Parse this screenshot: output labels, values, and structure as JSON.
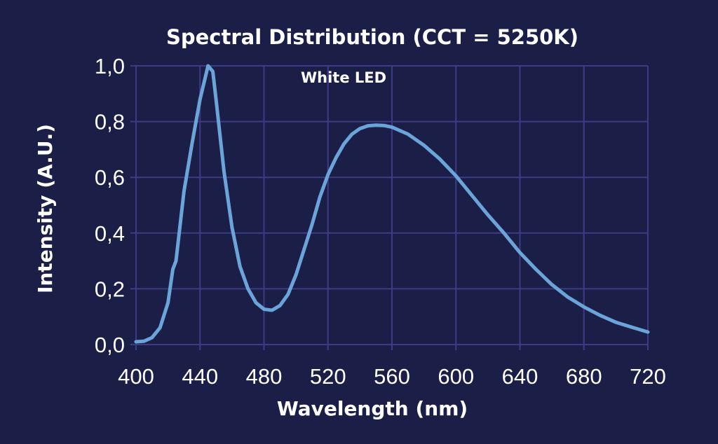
{
  "chart_data": {
    "type": "line",
    "title": "Spectral Distribution (CCT = 5250K)",
    "annotation": "White LED",
    "xlabel": "Wavelength (nm)",
    "ylabel": "Intensity (A.U.)",
    "xlim": [
      400,
      720
    ],
    "ylim": [
      0,
      1.0
    ],
    "xticks": [
      400,
      440,
      480,
      520,
      560,
      600,
      640,
      680,
      720
    ],
    "xtick_labels": [
      "400",
      "440",
      "480",
      "520",
      "560",
      "600",
      "640",
      "680",
      "720"
    ],
    "yticks": [
      0,
      0.2,
      0.4,
      0.6,
      0.8,
      1.0
    ],
    "ytick_labels": [
      "0,0",
      "0,2",
      "0,4",
      "0,6",
      "0,8",
      "1,0"
    ],
    "grid": true,
    "legend": "none",
    "series": [
      {
        "name": "White LED",
        "color": "#6aa4d8",
        "x": [
          400,
          405,
          410,
          415,
          420,
          423,
          425,
          430,
          435,
          440,
          445,
          448,
          450,
          455,
          460,
          465,
          470,
          475,
          480,
          485,
          490,
          495,
          500,
          505,
          510,
          515,
          520,
          525,
          530,
          535,
          540,
          545,
          550,
          555,
          560,
          570,
          580,
          590,
          600,
          610,
          620,
          630,
          640,
          650,
          660,
          670,
          680,
          690,
          700,
          710,
          720
        ],
        "y": [
          0.01,
          0.012,
          0.025,
          0.06,
          0.15,
          0.27,
          0.3,
          0.55,
          0.72,
          0.88,
          1.0,
          0.98,
          0.88,
          0.62,
          0.42,
          0.28,
          0.2,
          0.15,
          0.127,
          0.123,
          0.14,
          0.18,
          0.25,
          0.34,
          0.43,
          0.53,
          0.61,
          0.67,
          0.72,
          0.755,
          0.775,
          0.785,
          0.787,
          0.786,
          0.78,
          0.755,
          0.715,
          0.665,
          0.605,
          0.535,
          0.465,
          0.4,
          0.33,
          0.27,
          0.215,
          0.17,
          0.135,
          0.105,
          0.08,
          0.062,
          0.045
        ]
      }
    ]
  },
  "colors": {
    "background": "#1b1f48",
    "grid": "#3f3a86",
    "text": "#ffffff"
  }
}
